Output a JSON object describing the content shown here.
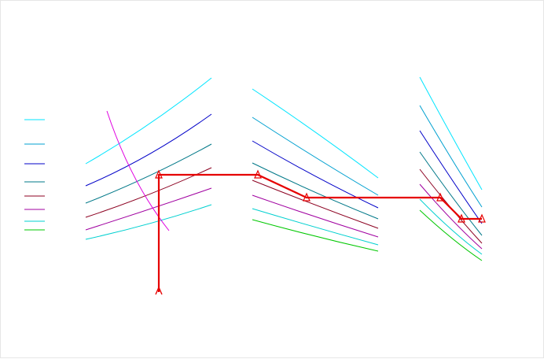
{
  "diagram": {
    "legend": [
      {
        "color": "#00e5ff"
      },
      {
        "color": "#00a0d0"
      },
      {
        "color": "#0000c8"
      },
      {
        "color": "#007888"
      },
      {
        "color": "#8c0020"
      },
      {
        "color": "#a000a0"
      },
      {
        "color": "#00d0d0"
      },
      {
        "color": "#00c800"
      }
    ],
    "route": {
      "color": "#e60000",
      "marker": "triangle-marker",
      "start_marker": "arrow-start-marker"
    },
    "boundary": {
      "color": "#e000e0"
    }
  }
}
